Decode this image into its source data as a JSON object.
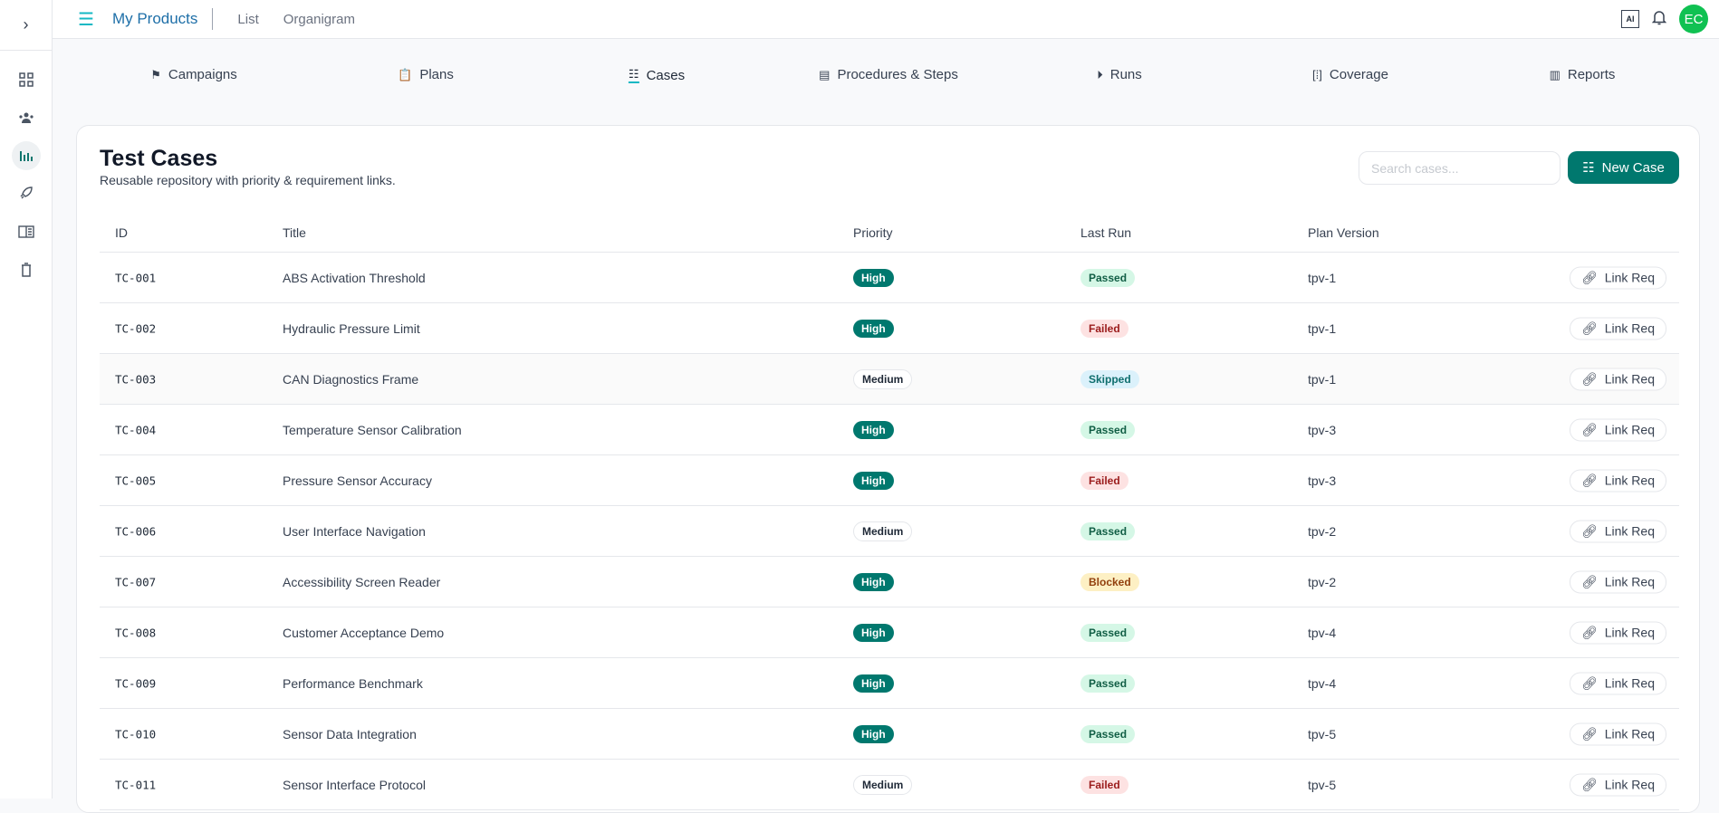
{
  "header": {
    "brand": "My Products",
    "links": [
      "List",
      "Organigram"
    ],
    "ai_label": "AI",
    "avatar": "EC"
  },
  "tabs": [
    {
      "label": "Campaigns",
      "icon": "flag-icon"
    },
    {
      "label": "Plans",
      "icon": "clipboard-icon"
    },
    {
      "label": "Cases",
      "icon": "list-icon",
      "active": true
    },
    {
      "label": "Procedures & Steps",
      "icon": "scroll-icon"
    },
    {
      "label": "Runs",
      "icon": "play-circle-icon"
    },
    {
      "label": "Coverage",
      "icon": "coverage-icon"
    },
    {
      "label": "Reports",
      "icon": "report-icon"
    }
  ],
  "card": {
    "title": "Test Cases",
    "subtitle": "Reusable repository with priority & requirement links.",
    "search_placeholder": "Search cases...",
    "new_button": "New Case"
  },
  "columns": [
    "ID",
    "Title",
    "Priority",
    "Last Run",
    "Plan Version"
  ],
  "link_label": "Link Req",
  "rows": [
    [
      "TC-001",
      "ABS Activation Threshold",
      "High",
      "Passed",
      "tpv-1"
    ],
    [
      "TC-002",
      "Hydraulic Pressure Limit",
      "High",
      "Failed",
      "tpv-1"
    ],
    [
      "TC-003",
      "CAN Diagnostics Frame",
      "Medium",
      "Skipped",
      "tpv-1"
    ],
    [
      "TC-004",
      "Temperature Sensor Calibration",
      "High",
      "Passed",
      "tpv-3"
    ],
    [
      "TC-005",
      "Pressure Sensor Accuracy",
      "High",
      "Failed",
      "tpv-3"
    ],
    [
      "TC-006",
      "User Interface Navigation",
      "Medium",
      "Passed",
      "tpv-2"
    ],
    [
      "TC-007",
      "Accessibility Screen Reader",
      "High",
      "Blocked",
      "tpv-2"
    ],
    [
      "TC-008",
      "Customer Acceptance Demo",
      "High",
      "Passed",
      "tpv-4"
    ],
    [
      "TC-009",
      "Performance Benchmark",
      "High",
      "Passed",
      "tpv-4"
    ],
    [
      "TC-010",
      "Sensor Data Integration",
      "High",
      "Passed",
      "tpv-5"
    ],
    [
      "TC-011",
      "Sensor Interface Protocol",
      "Medium",
      "Failed",
      "tpv-5"
    ]
  ],
  "colors": {
    "accent": "#00786e",
    "brand": "#1e6fa8",
    "avatar": "#10c152"
  }
}
